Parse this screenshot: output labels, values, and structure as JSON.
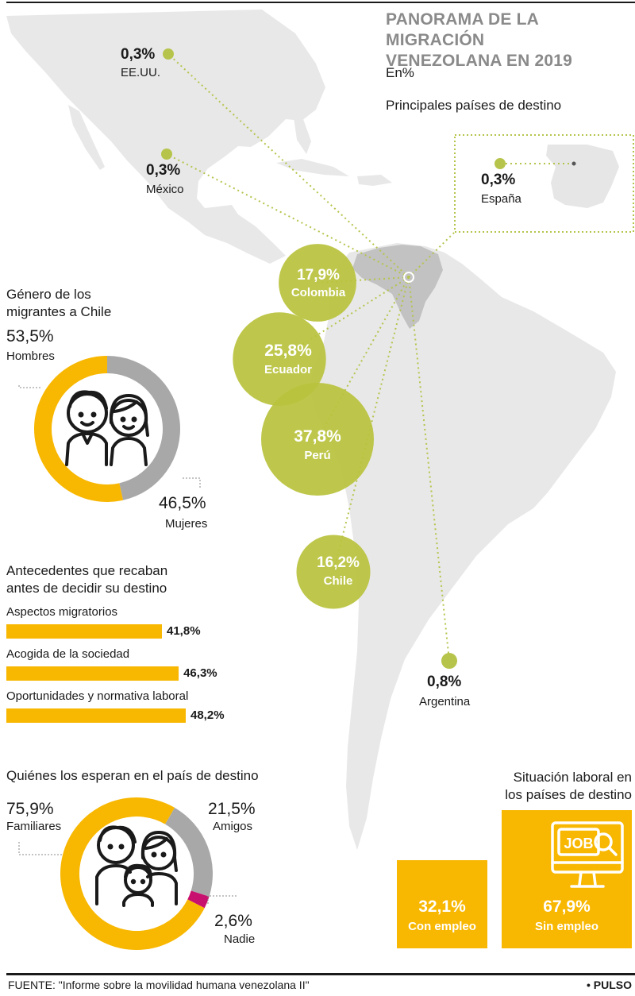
{
  "header": {
    "title_line1": "PANORAMA DE LA MIGRACIÓN",
    "title_line2": "VENEZOLANA EN 2019",
    "units": "En%",
    "subtitle": "Principales países de destino"
  },
  "colors": {
    "bubble": "#b9c23c",
    "bubble_dot": "#b7c44c",
    "yellow": "#f8b700",
    "gray": "#a8a8a8",
    "magenta": "#c8106e",
    "map_land": "#e7e7e7",
    "map_venezuela": "#bdbdbd"
  },
  "destinations": [
    {
      "country": "EE.UU.",
      "value_label": "0,3%"
    },
    {
      "country": "México",
      "value_label": "0,3%"
    },
    {
      "country": "España",
      "value_label": "0,3%"
    },
    {
      "country": "Argentina",
      "value_label": "0,8%"
    }
  ],
  "bubbles": [
    {
      "country": "Colombia",
      "value_label": "17,9%"
    },
    {
      "country": "Ecuador",
      "value_label": "25,8%"
    },
    {
      "country": "Perú",
      "value_label": "37,8%"
    },
    {
      "country": "Chile",
      "value_label": "16,2%"
    }
  ],
  "gender": {
    "title_line1": "Género de los",
    "title_line2": "migrantes a Chile",
    "men_label": "Hombres",
    "men_value": "53,5%",
    "women_label": "Mujeres",
    "women_value": "46,5%",
    "icon": "couple-icon"
  },
  "antecedentes": {
    "title_line1": "Antecedentes que recaban",
    "title_line2": "antes de decidir su destino"
  },
  "waiting": {
    "title": "Quiénes los esperan en el país de destino",
    "family_value": "75,9%",
    "family_label": "Familiares",
    "friends_value": "21,5%",
    "friends_label": "Amigos",
    "nobody_value": "2,6%",
    "nobody_label": "Nadie",
    "icon": "family-icon"
  },
  "labor": {
    "title_line1": "Situación laboral en",
    "title_line2": "los países de destino",
    "icon": "job-monitor-icon",
    "icon_text": "JOB"
  },
  "footer": {
    "source": "FUENTE: \"Informe sobre la movilidad humana venezolana II\"",
    "brand": "• PULSO"
  },
  "chart_data": [
    {
      "type": "bubble",
      "title": "Principales países de destino",
      "categories": [
        "EE.UU.",
        "México",
        "España",
        "Colombia",
        "Ecuador",
        "Perú",
        "Chile",
        "Argentina"
      ],
      "values": [
        0.3,
        0.3,
        0.3,
        17.9,
        25.8,
        37.8,
        16.2,
        0.8
      ],
      "unit": "%"
    },
    {
      "type": "pie",
      "title": "Género de los migrantes a Chile",
      "categories": [
        "Hombres",
        "Mujeres"
      ],
      "values": [
        53.5,
        46.5
      ],
      "colors": [
        "#f8b700",
        "#a8a8a8"
      ]
    },
    {
      "type": "bar",
      "title": "Antecedentes que recaban antes de decidir su destino",
      "categories": [
        "Aspectos migratorios",
        "Acogida de la sociedad",
        "Oportunidades y normativa laboral"
      ],
      "values": [
        41.8,
        46.3,
        48.2
      ],
      "value_labels": [
        "41,8%",
        "46,3%",
        "48,2%"
      ],
      "color": "#f8b700"
    },
    {
      "type": "pie",
      "title": "Quiénes los esperan en el país de destino",
      "categories": [
        "Familiares",
        "Amigos",
        "Nadie"
      ],
      "values": [
        75.9,
        21.5,
        2.6
      ],
      "colors": [
        "#f8b700",
        "#a8a8a8",
        "#c8106e"
      ]
    },
    {
      "type": "bar",
      "title": "Situación laboral en los países de destino",
      "categories": [
        "Con empleo",
        "Sin empleo"
      ],
      "values": [
        32.1,
        67.9
      ],
      "value_labels": [
        "32,1%",
        "67,9%"
      ],
      "color": "#f8b700"
    }
  ]
}
